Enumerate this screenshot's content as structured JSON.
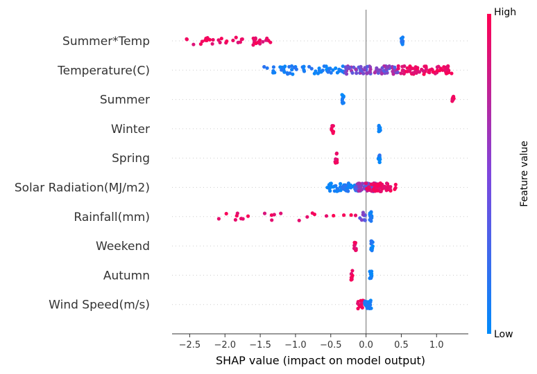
{
  "chart_data": {
    "type": "scatter",
    "title": "",
    "xlabel": "SHAP value (impact on model output)",
    "ylabel": "",
    "xlim": [
      -2.75,
      1.45
    ],
    "xticks": [
      -2.5,
      -2.0,
      -1.5,
      -1.0,
      -0.5,
      0.0,
      0.5,
      1.0
    ],
    "xtick_labels": [
      "−2.5",
      "−2.0",
      "−1.5",
      "−1.0",
      "−0.5",
      "0.0",
      "0.5",
      "1.0"
    ],
    "grid": false,
    "colorbar": {
      "title": "Feature value",
      "high_label": "High",
      "low_label": "Low",
      "high_color": "#ff0052",
      "low_color": "#008bfb"
    },
    "features": [
      {
        "name": "Summer*Temp",
        "clusters": [
          {
            "min": -2.55,
            "max": -1.35,
            "value": "high",
            "n": 40
          },
          {
            "min": 0.5,
            "max": 0.53,
            "value": "low",
            "n": 10
          }
        ]
      },
      {
        "name": "Temperature(C)",
        "clusters": [
          {
            "min": -1.45,
            "max": -0.3,
            "value": "low",
            "n": 60
          },
          {
            "min": -0.3,
            "max": 0.45,
            "value": "mid",
            "n": 80
          },
          {
            "min": 0.45,
            "max": 1.22,
            "value": "high",
            "n": 70
          }
        ]
      },
      {
        "name": "Summer",
        "clusters": [
          {
            "min": -0.34,
            "max": -0.31,
            "value": "low",
            "n": 10
          },
          {
            "min": 1.22,
            "max": 1.25,
            "value": "high",
            "n": 8
          }
        ]
      },
      {
        "name": "Winter",
        "clusters": [
          {
            "min": -0.49,
            "max": -0.46,
            "value": "high",
            "n": 8
          },
          {
            "min": 0.18,
            "max": 0.21,
            "value": "low",
            "n": 10
          }
        ]
      },
      {
        "name": "Spring",
        "clusters": [
          {
            "min": -0.44,
            "max": -0.41,
            "value": "high",
            "n": 8
          },
          {
            "min": 0.17,
            "max": 0.2,
            "value": "low",
            "n": 10
          }
        ]
      },
      {
        "name": "Solar Radiation(MJ/m2)",
        "clusters": [
          {
            "min": -0.55,
            "max": -0.05,
            "value": "low",
            "n": 70
          },
          {
            "min": -0.15,
            "max": 0.15,
            "value": "mid",
            "n": 50
          },
          {
            "min": 0.0,
            "max": 0.42,
            "value": "high",
            "n": 60
          }
        ]
      },
      {
        "name": "Rainfall(mm)",
        "clusters": [
          {
            "min": -2.1,
            "max": -0.05,
            "value": "high",
            "n": 22
          },
          {
            "min": -0.1,
            "max": 0.0,
            "value": "mid",
            "n": 8
          },
          {
            "min": 0.05,
            "max": 0.08,
            "value": "low",
            "n": 14
          }
        ]
      },
      {
        "name": "Weekend",
        "clusters": [
          {
            "min": -0.17,
            "max": -0.14,
            "value": "high",
            "n": 8
          },
          {
            "min": 0.07,
            "max": 0.1,
            "value": "low",
            "n": 10
          }
        ]
      },
      {
        "name": "Autumn",
        "clusters": [
          {
            "min": -0.22,
            "max": -0.19,
            "value": "high",
            "n": 8
          },
          {
            "min": 0.05,
            "max": 0.08,
            "value": "low",
            "n": 10
          }
        ]
      },
      {
        "name": "Wind Speed(m/s)",
        "clusters": [
          {
            "min": -0.12,
            "max": 0.0,
            "value": "high",
            "n": 16
          },
          {
            "min": -0.02,
            "max": 0.08,
            "value": "low",
            "n": 24
          }
        ]
      }
    ]
  }
}
